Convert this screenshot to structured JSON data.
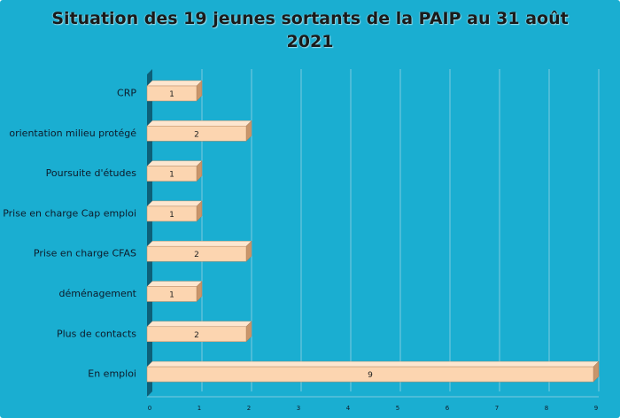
{
  "chart_data": {
    "type": "bar",
    "orientation": "horizontal",
    "title": "Situation des 19 jeunes sortants  de la PAIP au 31 août 2021",
    "categories": [
      "CRP",
      "orientation milieu protégé",
      "Poursuite d'études",
      "Prise en charge Cap emploi",
      "Prise en charge CFAS",
      "déménagement",
      "Plus de contacts",
      "En emploi"
    ],
    "values": [
      1,
      2,
      1,
      1,
      2,
      1,
      2,
      9
    ],
    "data_labels": [
      "1",
      "2",
      "1",
      "1",
      "2",
      "1",
      "2",
      "9"
    ],
    "xlim": [
      0,
      9
    ],
    "x_ticks": [
      "0",
      "1",
      "2",
      "3",
      "4",
      "5",
      "6",
      "7",
      "8",
      "9"
    ],
    "xlabel": "",
    "ylabel": "",
    "grid": true,
    "legend": "none",
    "colors": {
      "background": "#1aaed1",
      "bar_front": "#fcd5b0",
      "bar_top": "#fde6cf",
      "bar_side": "#c9956a",
      "gridline": "#7fcbe0",
      "axis_wall": "#0d5f78"
    }
  }
}
